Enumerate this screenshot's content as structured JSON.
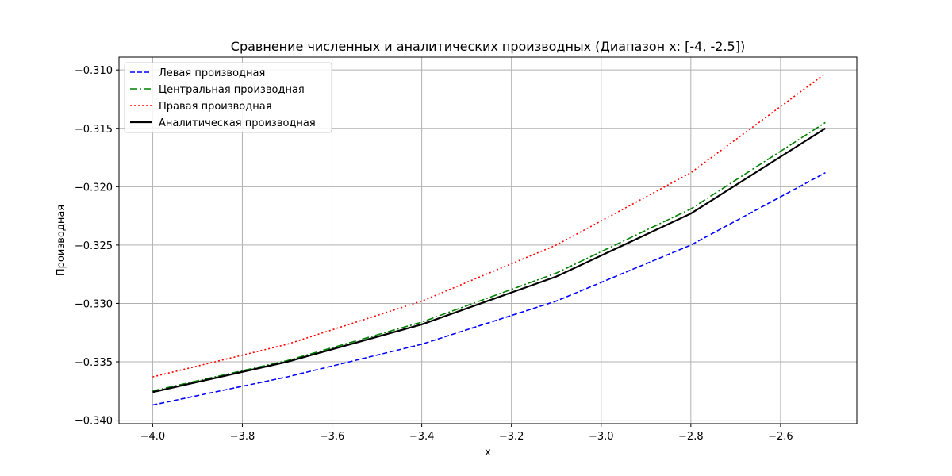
{
  "chart_data": {
    "type": "line",
    "title": "Сравнение численных и аналитических производных (Диапазон x: [-4, -2.5])",
    "xlabel": "x",
    "ylabel": "Производная",
    "xlim": [
      -4.075,
      -2.43
    ],
    "ylim": [
      -0.3403,
      -0.3089
    ],
    "xticks": [
      -4.0,
      -3.8,
      -3.6,
      -3.4,
      -3.2,
      -3.0,
      -2.8,
      -2.6
    ],
    "xtick_labels": [
      "−4.0",
      "−3.8",
      "−3.6",
      "−3.4",
      "−3.2",
      "−3.0",
      "−2.8",
      "−2.6"
    ],
    "yticks": [
      -0.34,
      -0.335,
      -0.33,
      -0.325,
      -0.32,
      -0.315,
      -0.31
    ],
    "ytick_labels": [
      "−0.340",
      "−0.335",
      "−0.330",
      "−0.325",
      "−0.320",
      "−0.315",
      "−0.310"
    ],
    "grid": true,
    "legend_position": "top-left",
    "x": [
      -4.0,
      -3.7,
      -3.4,
      -3.1,
      -2.8,
      -2.5
    ],
    "series": [
      {
        "name": "Левая производная",
        "values": [
          -0.3387,
          -0.3363,
          -0.3335,
          -0.3298,
          -0.325,
          -0.3188
        ],
        "color": "#0000ff",
        "style": "dashed"
      },
      {
        "name": "Центральная производная",
        "values": [
          -0.3375,
          -0.3349,
          -0.3316,
          -0.3274,
          -0.3219,
          -0.3145
        ],
        "color": "#008000",
        "style": "dashdot"
      },
      {
        "name": "Правая производная",
        "values": [
          -0.3363,
          -0.3335,
          -0.3298,
          -0.325,
          -0.3188,
          -0.3103
        ],
        "color": "#ff0000",
        "style": "dotted"
      },
      {
        "name": "Аналитическая производная",
        "values": [
          -0.3376,
          -0.335,
          -0.3318,
          -0.3277,
          -0.3223,
          -0.315
        ],
        "color": "#000000",
        "style": "solid"
      }
    ]
  }
}
